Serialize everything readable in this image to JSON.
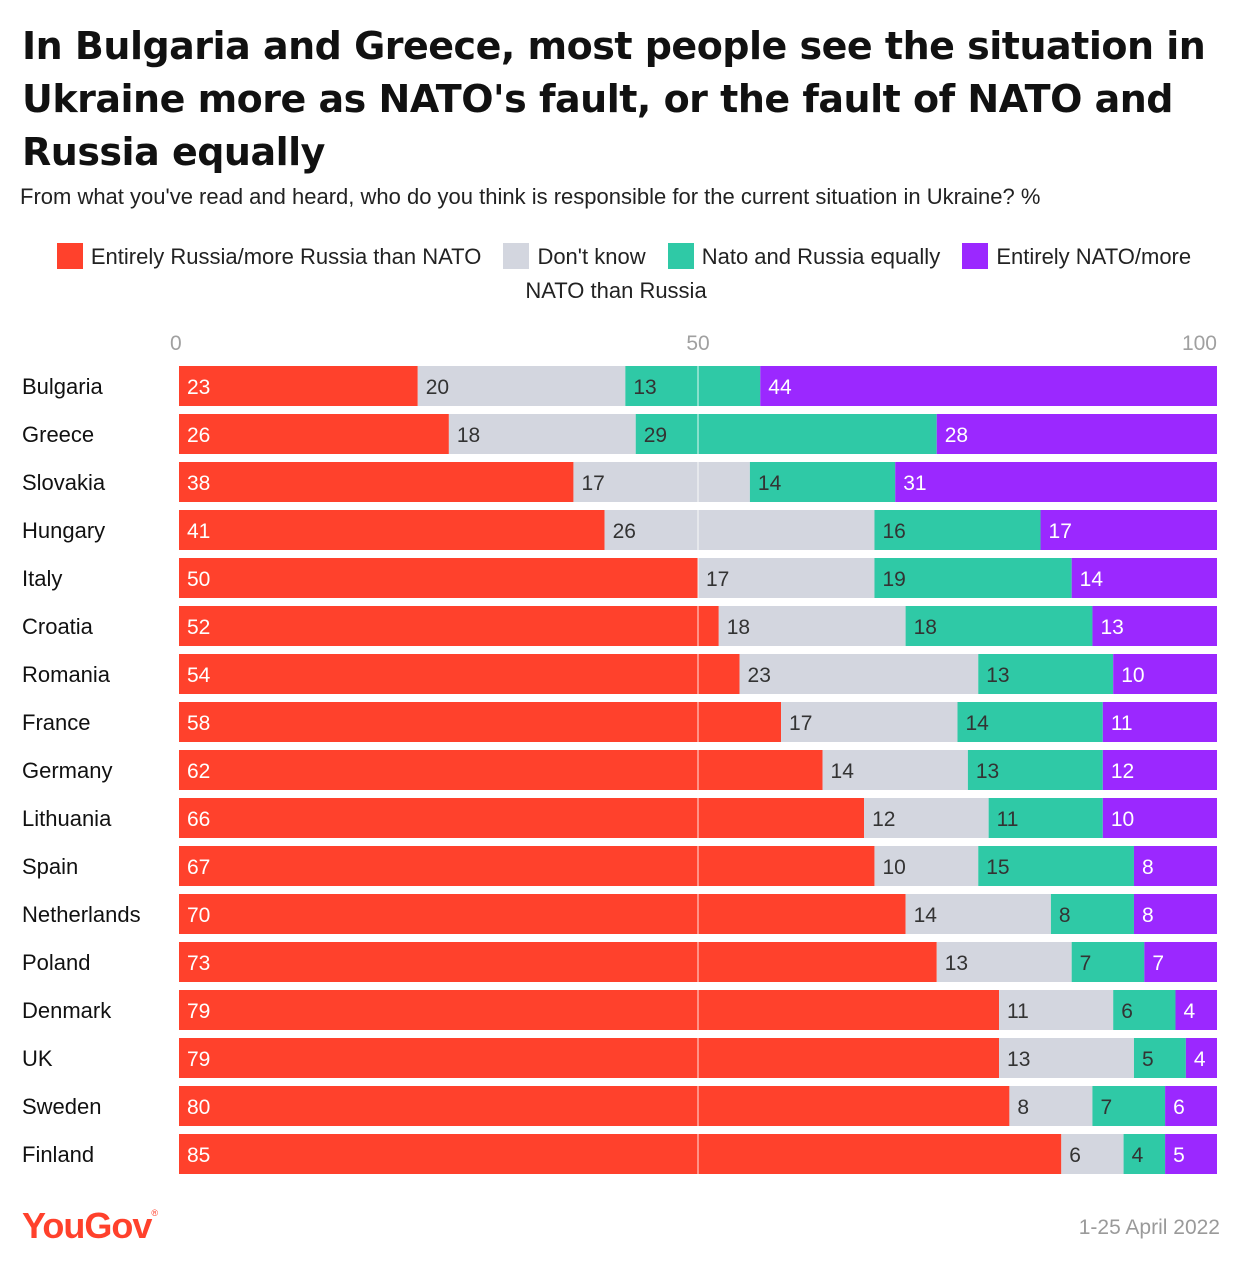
{
  "title": "In Bulgaria and Greece, most people see the situation in Ukraine more as NATO's fault, or the fault of NATO and Russia equally",
  "subtitle": "From what you've read and heard, who do you think is responsible for the current situation in Ukraine? %",
  "source_date": "1-25 April 2022",
  "brand": {
    "name": "YouGov",
    "mark": "®"
  },
  "colors": {
    "russia": "#ff412c",
    "dont_know": "#d3d6df",
    "equal": "#2fc9a6",
    "nato": "#9b28ff",
    "axis_text": "#a0a0a0",
    "label_dark": "#333333",
    "label_light": "#ffffff"
  },
  "chart_data": {
    "type": "bar",
    "orientation": "horizontal",
    "stacked": true,
    "xlim": [
      0,
      100
    ],
    "ticks": [
      0,
      50,
      100
    ],
    "gridlines": [
      50
    ],
    "categories": [
      "Bulgaria",
      "Greece",
      "Slovakia",
      "Hungary",
      "Italy",
      "Croatia",
      "Romania",
      "France",
      "Germany",
      "Lithuania",
      "Spain",
      "Netherlands",
      "Poland",
      "Denmark",
      "UK",
      "Sweden",
      "Finland"
    ],
    "series": [
      {
        "name": "Entirely Russia/more Russia than NATO",
        "key": "russia",
        "values": [
          23,
          26,
          38,
          41,
          50,
          52,
          54,
          58,
          62,
          66,
          67,
          70,
          73,
          79,
          79,
          80,
          85
        ]
      },
      {
        "name": "Don't know",
        "key": "dont_know",
        "values": [
          20,
          18,
          17,
          26,
          17,
          18,
          23,
          17,
          14,
          12,
          10,
          14,
          13,
          11,
          13,
          8,
          6
        ]
      },
      {
        "name": "Nato and Russia equally",
        "key": "equal",
        "values": [
          13,
          29,
          14,
          16,
          19,
          18,
          13,
          14,
          13,
          11,
          15,
          8,
          7,
          6,
          5,
          7,
          4
        ]
      },
      {
        "name": "Entirely NATO/more NATO than Russia",
        "key": "nato",
        "values": [
          44,
          28,
          31,
          17,
          14,
          13,
          10,
          11,
          12,
          10,
          8,
          8,
          7,
          4,
          4,
          6,
          5
        ]
      }
    ]
  }
}
